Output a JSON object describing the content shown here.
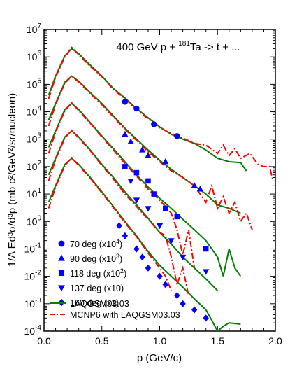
{
  "chart_data": {
    "type": "scatter",
    "title": "400 GeV p + ¹⁸¹Ta -> t + ...",
    "xlabel": "p (GeV/c)",
    "ylabel": "1/A Ed³σ/d³p (mb c²/GeV²/sr/nucleon)",
    "xlim": [
      0,
      2
    ],
    "ylim_log10": [
      -4,
      7
    ],
    "y_scale": "log",
    "x_ticks": [
      {
        "v": 0,
        "label": "0.0"
      },
      {
        "v": 0.5,
        "label": "0.5"
      },
      {
        "v": 1,
        "label": "1.0"
      },
      {
        "v": 1.5,
        "label": "1.5"
      },
      {
        "v": 2,
        "label": "2.0"
      }
    ],
    "y_ticks": [
      {
        "e": -4,
        "label": "10",
        "sup": "-4"
      },
      {
        "e": -3,
        "label": "10",
        "sup": "-3"
      },
      {
        "e": -2,
        "label": "10",
        "sup": "-2"
      },
      {
        "e": -1,
        "label": "10",
        "sup": "-1"
      },
      {
        "e": 0,
        "label": "10",
        "sup": "0"
      },
      {
        "e": 1,
        "label": "10",
        "sup": "1"
      },
      {
        "e": 2,
        "label": "10",
        "sup": "2"
      },
      {
        "e": 3,
        "label": "10",
        "sup": "3"
      },
      {
        "e": 4,
        "label": "10",
        "sup": "4"
      },
      {
        "e": 5,
        "label": "10",
        "sup": "5"
      },
      {
        "e": 6,
        "label": "10",
        "sup": "6"
      },
      {
        "e": 7,
        "label": "10",
        "sup": "7"
      }
    ],
    "legend_placement": "bottom-left",
    "colors": {
      "data": "#0000ff",
      "laqgsm": "#008000",
      "mcnp6": "#ff0000"
    },
    "series": [
      {
        "name": "70 deg (x10⁴)",
        "marker": "circle",
        "points": [
          [
            0.7,
            23000
          ],
          [
            0.8,
            13000
          ],
          [
            0.95,
            3500
          ],
          [
            1.15,
            1300
          ]
        ],
        "laqgsm": [
          [
            0.04,
            40000.0
          ],
          [
            0.1,
            200000.0
          ],
          [
            0.18,
            1100000.0
          ],
          [
            0.24,
            2000000.0
          ],
          [
            0.3,
            1300000.0
          ],
          [
            0.4,
            500000.0
          ],
          [
            0.5,
            200000.0
          ],
          [
            0.6,
            70000.0
          ],
          [
            0.7,
            32000.0
          ],
          [
            0.8,
            13000.0
          ],
          [
            0.9,
            6000
          ],
          [
            1.0,
            2800
          ],
          [
            1.1,
            1500
          ],
          [
            1.2,
            1000
          ],
          [
            1.3,
            700
          ],
          [
            1.4,
            400
          ],
          [
            1.5,
            200
          ],
          [
            1.6,
            150
          ],
          [
            1.7,
            140
          ],
          [
            1.75,
            70
          ]
        ],
        "mcnp6": [
          [
            0.04,
            30000.0
          ],
          [
            0.1,
            180000.0
          ],
          [
            0.18,
            1000000.0
          ],
          [
            0.24,
            2200000.0
          ],
          [
            0.3,
            1200000.0
          ],
          [
            0.4,
            450000.0
          ],
          [
            0.5,
            190000.0
          ],
          [
            0.6,
            65000.0
          ],
          [
            0.7,
            30000.0
          ],
          [
            0.8,
            12000.0
          ],
          [
            0.9,
            5500
          ],
          [
            1.0,
            2600
          ],
          [
            1.1,
            1600
          ],
          [
            1.2,
            1100
          ],
          [
            1.3,
            700
          ],
          [
            1.4,
            600
          ],
          [
            1.5,
            300
          ],
          [
            1.55,
            600
          ],
          [
            1.6,
            250
          ],
          [
            1.65,
            450
          ],
          [
            1.7,
            200
          ],
          [
            1.78,
            300
          ],
          [
            1.85,
            120
          ],
          [
            1.9,
            100
          ],
          [
            1.95,
            100
          ],
          [
            1.98,
            30
          ]
        ]
      },
      {
        "name": "90 deg (x10³)",
        "marker": "triangle-up",
        "points": [
          [
            0.7,
            1500
          ],
          [
            0.75,
            800
          ],
          [
            0.85,
            400
          ],
          [
            0.9,
            250
          ],
          [
            1.05,
            150
          ],
          [
            1.3,
            20
          ],
          [
            1.35,
            15
          ]
        ],
        "laqgsm": [
          [
            0.04,
            5000
          ],
          [
            0.1,
            20000.0
          ],
          [
            0.18,
            120000.0
          ],
          [
            0.24,
            200000.0
          ],
          [
            0.3,
            130000.0
          ],
          [
            0.4,
            50000.0
          ],
          [
            0.5,
            20000.0
          ],
          [
            0.6,
            7000
          ],
          [
            0.7,
            2500
          ],
          [
            0.8,
            1000
          ],
          [
            0.9,
            400
          ],
          [
            1.0,
            170
          ],
          [
            1.1,
            80
          ],
          [
            1.2,
            40
          ],
          [
            1.3,
            20
          ],
          [
            1.4,
            10
          ],
          [
            1.5,
            4
          ],
          [
            1.6,
            3
          ],
          [
            1.7,
            2
          ]
        ],
        "mcnp6": [
          [
            0.04,
            3000
          ],
          [
            0.1,
            18000.0
          ],
          [
            0.18,
            110000.0
          ],
          [
            0.24,
            200000.0
          ],
          [
            0.3,
            120000.0
          ],
          [
            0.4,
            46000.0
          ],
          [
            0.5,
            18000.0
          ],
          [
            0.6,
            6500
          ],
          [
            0.7,
            2300
          ],
          [
            0.8,
            900
          ],
          [
            0.9,
            350
          ],
          [
            1.0,
            150
          ],
          [
            1.1,
            70
          ],
          [
            1.2,
            40
          ],
          [
            1.3,
            20
          ],
          [
            1.35,
            10
          ],
          [
            1.4,
            5
          ],
          [
            1.45,
            20
          ],
          [
            1.5,
            3
          ],
          [
            1.55,
            8
          ],
          [
            1.6,
            2
          ],
          [
            1.65,
            5
          ],
          [
            1.7,
            1
          ],
          [
            1.75,
            2
          ],
          [
            1.8,
            0.5
          ]
        ]
      },
      {
        "name": "118 deg (x10²)",
        "marker": "square",
        "points": [
          [
            0.7,
            100
          ],
          [
            0.8,
            60
          ],
          [
            0.9,
            30
          ],
          [
            0.95,
            10
          ],
          [
            1.05,
            3
          ],
          [
            1.15,
            1.5
          ],
          [
            1.4,
            0.1
          ]
        ],
        "laqgsm": [
          [
            0.04,
            500
          ],
          [
            0.1,
            2000
          ],
          [
            0.18,
            12000.0
          ],
          [
            0.24,
            20000.0
          ],
          [
            0.3,
            12000.0
          ],
          [
            0.4,
            4000
          ],
          [
            0.5,
            1300
          ],
          [
            0.6,
            450
          ],
          [
            0.7,
            150
          ],
          [
            0.8,
            50
          ],
          [
            0.9,
            18
          ],
          [
            1.0,
            7
          ],
          [
            1.1,
            3
          ],
          [
            1.2,
            1.2
          ],
          [
            1.3,
            0.5
          ],
          [
            1.4,
            0.2
          ],
          [
            1.5,
            0.05
          ],
          [
            1.55,
            0.01
          ],
          [
            1.6,
            0.1
          ],
          [
            1.65,
            0.02
          ],
          [
            1.7,
            0.01
          ]
        ],
        "mcnp6": [
          [
            0.04,
            300
          ],
          [
            0.1,
            1800
          ],
          [
            0.18,
            11000.0
          ],
          [
            0.24,
            21000.0
          ],
          [
            0.3,
            11000.0
          ],
          [
            0.4,
            3800
          ],
          [
            0.5,
            1200
          ],
          [
            0.6,
            400
          ],
          [
            0.7,
            130
          ],
          [
            0.8,
            45
          ],
          [
            0.9,
            15
          ],
          [
            1.0,
            6
          ],
          [
            1.1,
            2
          ],
          [
            1.15,
            0.5
          ],
          [
            1.2,
            0.06
          ],
          [
            1.25,
            0.5
          ],
          [
            1.3,
            0.02
          ]
        ]
      },
      {
        "name": "137 deg (x10)",
        "marker": "triangle-down",
        "points": [
          [
            0.75,
            30
          ],
          [
            0.8,
            6
          ],
          [
            0.9,
            3
          ],
          [
            1.0,
            0.7
          ],
          [
            1.1,
            0.2
          ],
          [
            1.2,
            0.05
          ],
          [
            1.4,
            0.015
          ]
        ],
        "laqgsm": [
          [
            0.04,
            50
          ],
          [
            0.1,
            200
          ],
          [
            0.18,
            1200
          ],
          [
            0.24,
            2000
          ],
          [
            0.3,
            1200
          ],
          [
            0.4,
            400
          ],
          [
            0.5,
            120
          ],
          [
            0.6,
            40
          ],
          [
            0.7,
            12
          ],
          [
            0.8,
            4
          ],
          [
            0.9,
            1.3
          ],
          [
            1.0,
            0.4
          ],
          [
            1.1,
            0.15
          ],
          [
            1.2,
            0.05
          ],
          [
            1.3,
            0.02
          ],
          [
            1.4,
            0.008
          ],
          [
            1.5,
            0.003
          ]
        ],
        "mcnp6": [
          [
            0.04,
            30
          ],
          [
            0.1,
            180
          ],
          [
            0.18,
            1100
          ],
          [
            0.24,
            2100
          ],
          [
            0.3,
            1100
          ],
          [
            0.4,
            380
          ],
          [
            0.5,
            110
          ],
          [
            0.6,
            35
          ],
          [
            0.7,
            10
          ],
          [
            0.8,
            3.5
          ],
          [
            0.9,
            1.2
          ],
          [
            1.0,
            0.4
          ],
          [
            1.05,
            0.3
          ],
          [
            1.1,
            0.05
          ],
          [
            1.15,
            0.005
          ],
          [
            1.2,
            0.02
          ],
          [
            1.25,
            0.002
          ]
        ]
      },
      {
        "name": "160 deg (x1)",
        "marker": "diamond",
        "points": [
          [
            0.65,
            0.7
          ],
          [
            0.7,
            0.3
          ],
          [
            0.8,
            0.1
          ],
          [
            0.85,
            0.05
          ],
          [
            0.9,
            0.02
          ],
          [
            1.0,
            0.01
          ],
          [
            1.05,
            0.005
          ],
          [
            1.15,
            0.002
          ],
          [
            1.2,
            0.001
          ],
          [
            1.3,
            0.0006
          ],
          [
            1.4,
            0.0003
          ]
        ],
        "laqgsm": [
          [
            0.04,
            5
          ],
          [
            0.1,
            20
          ],
          [
            0.18,
            120
          ],
          [
            0.24,
            200
          ],
          [
            0.3,
            120
          ],
          [
            0.4,
            40
          ],
          [
            0.5,
            12
          ],
          [
            0.6,
            3.5
          ],
          [
            0.7,
            1
          ],
          [
            0.8,
            0.3
          ],
          [
            0.9,
            0.08
          ],
          [
            1.0,
            0.025
          ],
          [
            1.1,
            0.01
          ],
          [
            1.2,
            0.004
          ],
          [
            1.3,
            0.0015
          ],
          [
            1.4,
            0.0006
          ],
          [
            1.45,
            0.00025
          ],
          [
            1.5,
            0.0001
          ],
          [
            1.55,
            0.00015
          ],
          [
            1.6,
            0.0002
          ],
          [
            1.7,
            0.00018
          ]
        ],
        "mcnp6": [
          [
            0.04,
            3
          ],
          [
            0.1,
            18
          ],
          [
            0.18,
            110
          ],
          [
            0.24,
            210
          ],
          [
            0.3,
            110
          ],
          [
            0.4,
            38
          ],
          [
            0.5,
            11
          ],
          [
            0.6,
            3.2
          ],
          [
            0.7,
            0.9
          ],
          [
            0.8,
            0.28
          ],
          [
            0.9,
            0.07
          ],
          [
            1.0,
            0.02
          ],
          [
            1.05,
            0.01
          ],
          [
            1.1,
            0.003
          ]
        ]
      }
    ],
    "legend_lines": [
      {
        "name": "LAQGSM03.03",
        "style": "solid",
        "color": "#008000"
      },
      {
        "name": "MCNP6 with LAQGSM03.03",
        "style": "dash-dot",
        "color": "#ff0000"
      }
    ]
  }
}
